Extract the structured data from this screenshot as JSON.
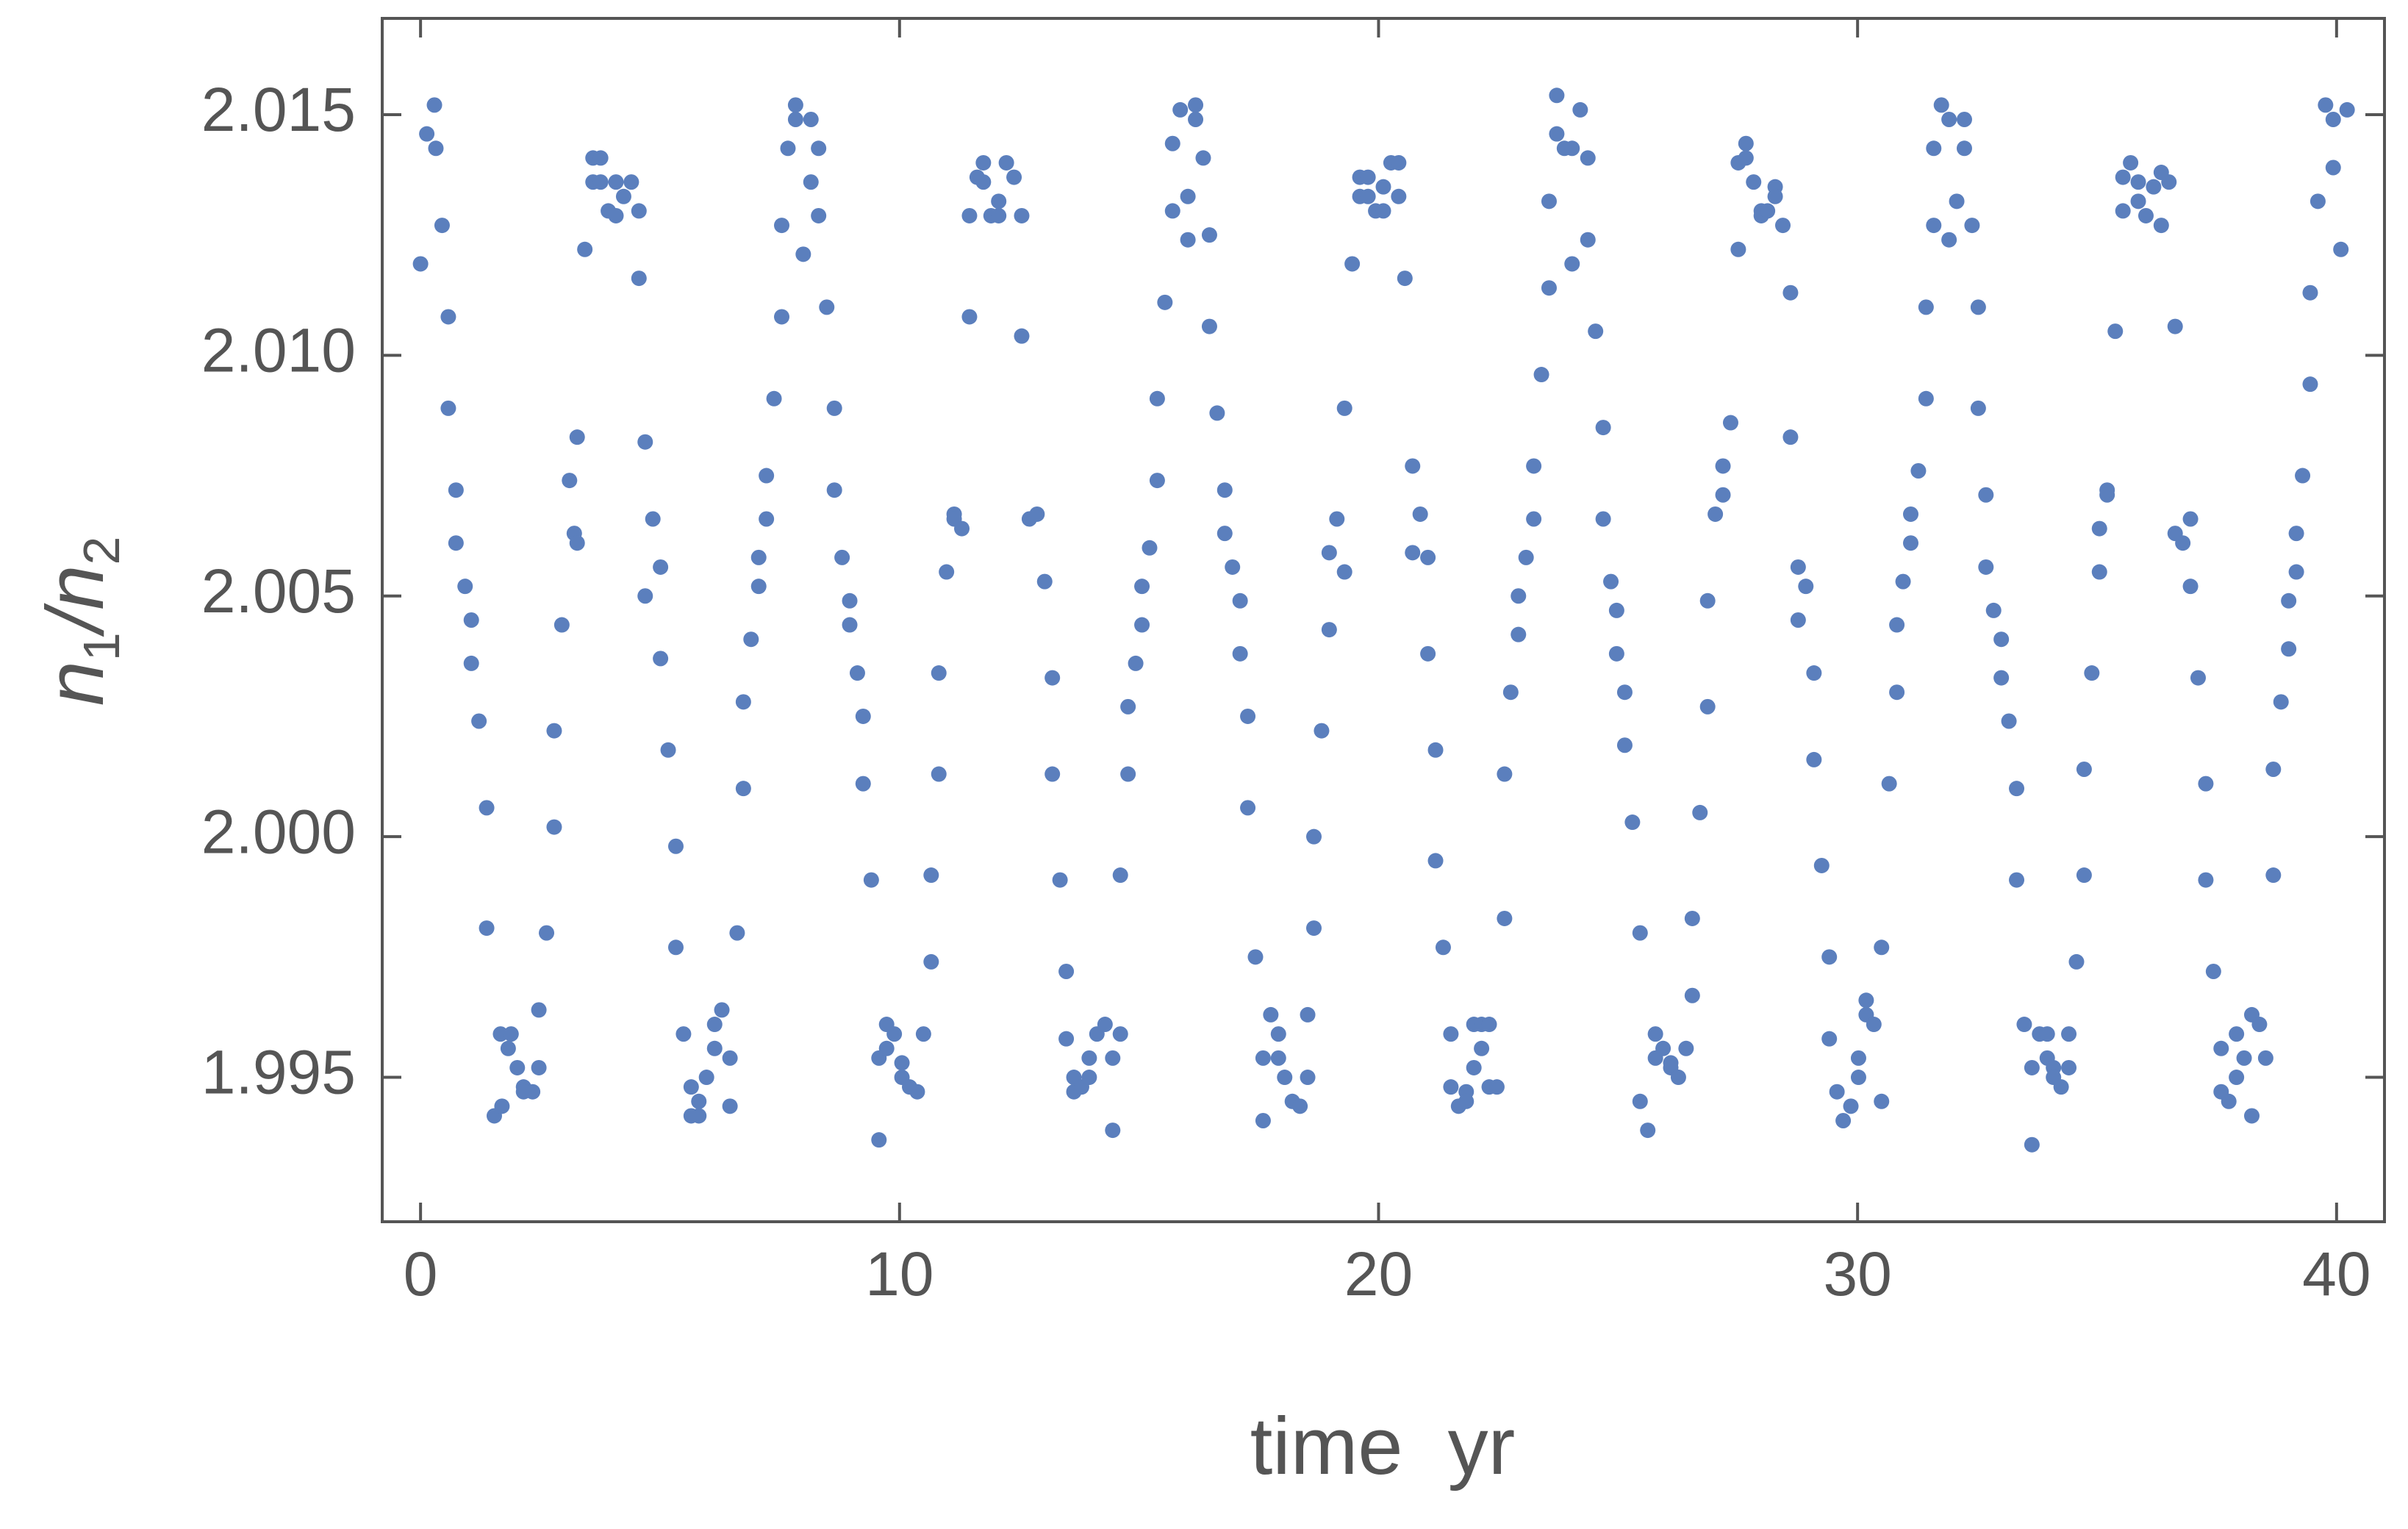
{
  "chart_data": {
    "type": "scatter",
    "x_label": "time  yr",
    "y_label": [
      "n",
      "1",
      "/",
      "n",
      "2"
    ],
    "xlim": [
      -0.8,
      41
    ],
    "ylim": [
      1.992,
      2.017
    ],
    "xticks": [
      0,
      10,
      20,
      30,
      40
    ],
    "yticks": [
      1.995,
      {
        "value": 2,
        "label": "2.000"
      },
      2.005,
      {
        "value": 2.01,
        "label": "2.010"
      },
      2.015
    ],
    "grid": false,
    "x": [
      0,
      0.13,
      0.29,
      0.32,
      0.45,
      0.58,
      0.58,
      0.74,
      0.74,
      0.93,
      1.06,
      1.06,
      1.22,
      1.38,
      1.38,
      1.54,
      1.7,
      1.67,
      1.89,
      1.83,
      2.02,
      2.15,
      2.15,
      2.34,
      2.47,
      2.47,
      2.63,
      2.79,
      2.79,
      2.95,
      3.11,
      3.21,
      3.27,
      3.27,
      3.43,
      3.6,
      3.6,
      3.76,
      3.76,
      3.92,
      4.08,
      4.08,
      4.24,
      4.4,
      4.56,
      4.56,
      4.69,
      4.69,
      4.85,
      5.01,
      5.01,
      5.17,
      5.33,
      5.33,
      5.49,
      5.65,
      5.81,
      5.65,
      5.81,
      5.97,
      6.14,
      6.14,
      6.29,
      6.46,
      6.46,
      6.61,
      6.74,
      6.74,
      6.9,
      7.06,
      7.06,
      7.22,
      7.22,
      7.38,
      7.54,
      7.54,
      7.67,
      7.83,
      7.83,
      7.99,
      8.15,
      8.15,
      8.31,
      8.31,
      8.48,
      8.64,
      8.64,
      8.8,
      8.96,
      8.96,
      9.12,
      9.24,
      9.24,
      9.41,
      9.57,
      9.57,
      9.73,
      9.73,
      9.89,
      10.05,
      10.05,
      10.21,
      10.37,
      10.5,
      10.66,
      10.66,
      10.82,
      10.82,
      10.98,
      11.14,
      11.14,
      11.3,
      11.46,
      11.46,
      11.62,
      11.75,
      11.75,
      11.91,
      12.07,
      12.07,
      12.23,
      12.39,
      12.55,
      12.55,
      12.71,
      12.87,
      13.03,
      13.19,
      13.19,
      13.35,
      13.48,
      13.48,
      13.64,
      13.64,
      13.8,
      13.96,
      13.96,
      14.12,
      14.29,
      14.45,
      14.45,
      14.61,
      14.61,
      14.77,
      14.77,
      14.93,
      15.06,
      15.06,
      15.22,
      15.38,
      15.38,
      15.54,
      15.7,
      15.7,
      15.86,
      16.02,
      16.02,
      16.18,
      16.18,
      16.34,
      16.47,
      16.47,
      16.63,
      16.79,
      16.79,
      16.95,
      17.11,
      17.11,
      17.27,
      17.27,
      17.43,
      17.59,
      17.59,
      17.75,
      17.91,
      17.91,
      18.04,
      18.2,
      18.36,
      18.52,
      18.52,
      18.65,
      18.65,
      18.81,
      18.97,
      18.97,
      19.13,
      19.29,
      19.29,
      19.45,
      19.61,
      19.61,
      19.78,
      19.78,
      19.94,
      20.1,
      20.1,
      20.26,
      20.42,
      20.42,
      20.55,
      20.71,
      20.71,
      20.87,
      21.03,
      21.03,
      21.19,
      21.19,
      21.35,
      21.51,
      21.51,
      21.67,
      21.83,
      21.83,
      21.99,
      21.99,
      22.15,
      22.15,
      22.31,
      22.31,
      22.47,
      22.63,
      22.63,
      22.76,
      22.92,
      22.92,
      23.08,
      23.24,
      23.24,
      23.4,
      23.56,
      23.56,
      23.72,
      23.72,
      23.88,
      24.04,
      24.04,
      24.21,
      24.37,
      24.37,
      24.53,
      24.69,
      24.69,
      24.85,
      24.97,
      24.97,
      25.14,
      25.14,
      25.3,
      25.46,
      25.46,
      25.62,
      25.78,
      25.78,
      25.94,
      26.1,
      26.1,
      26.26,
      26.42,
      26.55,
      26.55,
      26.71,
      26.87,
      26.87,
      27.03,
      27.19,
      27.19,
      27.35,
      27.51,
      27.51,
      27.67,
      27.67,
      27.83,
      27.99,
      27.99,
      28.12,
      28.28,
      28.28,
      28.44,
      28.6,
      28.6,
      28.76,
      28.92,
      28.76,
      29.09,
      29.09,
      29.25,
      29.41,
      29.41,
      29.57,
      29.7,
      29.86,
      30.02,
      30.02,
      30.18,
      30.18,
      30.34,
      30.5,
      30.5,
      30.66,
      30.82,
      30.82,
      30.95,
      31.11,
      31.11,
      31.27,
      31.43,
      31.43,
      31.59,
      31.59,
      31.75,
      31.91,
      31.91,
      32.07,
      32.23,
      32.23,
      32.39,
      32.52,
      32.52,
      32.68,
      32.68,
      32.84,
      33.0,
      33.0,
      33.16,
      33.32,
      33.32,
      33.48,
      33.64,
      33.64,
      33.8,
      33.96,
      33.96,
      34.09,
      34.09,
      34.25,
      34.41,
      34.41,
      34.57,
      34.73,
      34.73,
      34.89,
      35.05,
      35.05,
      35.21,
      35.21,
      35.38,
      35.54,
      35.54,
      35.7,
      35.86,
      35.86,
      36.02,
      36.18,
      36.34,
      36.34,
      36.5,
      36.63,
      36.63,
      36.79,
      36.95,
      36.95,
      37.11,
      37.27,
      37.27,
      37.43,
      37.59,
      37.59,
      37.75,
      37.91,
      37.91,
      38.07,
      38.23,
      38.23,
      38.39,
      38.52,
      38.68,
      38.68,
      38.84,
      39.0,
      39.0,
      39.16,
      39.16,
      39.29,
      39.45,
      39.45,
      39.61,
      39.77,
      39.93,
      39.93,
      40.09,
      40.22
    ],
    "series": [
      {
        "color": "#5b7fbd",
        "values": [
          2.0119,
          2.0146,
          2.0152,
          2.0143,
          2.0127,
          2.0108,
          2.0089,
          2.0072,
          2.0061,
          2.0052,
          2.0045,
          2.0036,
          2.0024,
          2.0006,
          1.9981,
          1.9942,
          1.9944,
          1.9959,
          1.9959,
          1.9956,
          1.9952,
          1.9948,
          1.9947,
          1.9947,
          1.9952,
          1.9964,
          1.998,
          2.0002,
          2.0022,
          2.0044,
          2.0074,
          2.0063,
          2.0061,
          2.0083,
          2.0122,
          2.0136,
          2.0141,
          2.0141,
          2.0136,
          2.013,
          2.0129,
          2.0136,
          2.0133,
          2.0136,
          2.013,
          2.0116,
          2.0082,
          2.005,
          2.0066,
          2.0056,
          2.0037,
          2.0018,
          1.9998,
          1.9977,
          1.9959,
          1.9948,
          1.9945,
          1.9942,
          1.9942,
          1.995,
          1.9961,
          1.9956,
          1.9964,
          1.9954,
          1.9944,
          1.998,
          2.001,
          2.0028,
          2.0041,
          2.0052,
          2.0058,
          2.0066,
          2.0075,
          2.0091,
          2.0108,
          2.0127,
          2.0143,
          2.0152,
          2.0149,
          2.0121,
          2.0136,
          2.0149,
          2.0143,
          2.0129,
          2.011,
          2.0089,
          2.0072,
          2.0058,
          2.0049,
          2.0044,
          2.0034,
          2.0025,
          2.0011,
          1.9991,
          1.9937,
          1.9954,
          1.9961,
          1.9956,
          1.9959,
          1.9953,
          1.995,
          1.9948,
          1.9947,
          1.9959,
          1.9974,
          1.9992,
          2.0013,
          2.0034,
          2.0055,
          2.0067,
          2.0066,
          2.0064,
          2.0108,
          2.0129,
          2.0137,
          2.0136,
          2.014,
          2.0129,
          2.0132,
          2.0129,
          2.014,
          2.0137,
          2.0129,
          2.0104,
          2.0066,
          2.0067,
          2.0053,
          2.0033,
          2.0013,
          1.9991,
          1.9972,
          1.9958,
          1.995,
          1.9947,
          1.9948,
          1.995,
          1.9954,
          1.9959,
          1.9961,
          1.9939,
          1.9954,
          1.9959,
          1.9992,
          2.0027,
          2.0013,
          2.0036,
          2.0044,
          2.0052,
          2.006,
          2.0074,
          2.0091,
          2.0111,
          2.013,
          2.0144,
          2.0151,
          2.0133,
          2.0124,
          2.0152,
          2.0149,
          2.0141,
          2.0125,
          2.0106,
          2.0088,
          2.0072,
          2.0063,
          2.0056,
          2.0049,
          2.0038,
          2.0025,
          2.0006,
          1.9975,
          1.9941,
          1.9954,
          1.9963,
          1.9959,
          1.9954,
          1.995,
          1.9945,
          1.9944,
          1.9963,
          1.995,
          1.9981,
          2.0,
          2.0022,
          2.0043,
          2.0059,
          2.0066,
          2.0055,
          2.0089,
          2.0119,
          2.0133,
          2.0137,
          2.0137,
          2.0133,
          2.013,
          2.0135,
          2.013,
          2.014,
          2.014,
          2.0133,
          2.0116,
          2.0077,
          2.0059,
          2.0067,
          2.0058,
          2.0038,
          2.0018,
          1.9995,
          1.9977,
          1.9959,
          1.9948,
          1.9944,
          1.9947,
          1.9945,
          1.9952,
          1.9961,
          1.9961,
          1.9956,
          1.9961,
          1.9948,
          1.9948,
          1.9983,
          2.0013,
          2.003,
          2.0042,
          2.005,
          2.0058,
          2.0066,
          2.0077,
          2.0096,
          2.0114,
          2.0132,
          2.0146,
          2.0154,
          2.0143,
          2.0143,
          2.0119,
          2.0151,
          2.0141,
          2.0124,
          2.0105,
          2.0085,
          2.0066,
          2.0053,
          2.0047,
          2.0038,
          2.003,
          2.0019,
          2.0003,
          1.998,
          1.9945,
          1.9939,
          1.9959,
          1.9954,
          1.9956,
          1.9953,
          1.9952,
          1.995,
          1.9956,
          1.9983,
          1.9967,
          2.0005,
          2.0027,
          2.0049,
          2.0067,
          2.0071,
          2.0077,
          2.0086,
          2.0122,
          2.014,
          2.0144,
          2.0141,
          2.0136,
          2.013,
          2.0129,
          2.013,
          2.0135,
          2.0133,
          2.0127,
          2.0113,
          2.0083,
          2.0056,
          2.0052,
          2.0045,
          2.0034,
          2.0016,
          1.9994,
          1.9975,
          1.9958,
          1.9947,
          1.9941,
          1.9944,
          1.9954,
          1.995,
          1.9966,
          1.9963,
          1.9961,
          1.9945,
          1.9977,
          2.0011,
          2.003,
          2.0044,
          2.0053,
          2.0061,
          2.0067,
          2.0076,
          2.0091,
          2.011,
          2.0127,
          2.0143,
          2.0152,
          2.0149,
          2.0124,
          2.0132,
          2.0149,
          2.0143,
          2.0127,
          2.011,
          2.0089,
          2.0071,
          2.0056,
          2.0047,
          2.0041,
          2.0033,
          2.0024,
          2.001,
          1.9991,
          1.9961,
          1.9936,
          1.9952,
          1.9959,
          1.9959,
          1.9954,
          1.9952,
          1.995,
          1.9948,
          1.9959,
          1.9952,
          1.9974,
          1.9992,
          2.0014,
          2.0034,
          2.0055,
          2.0064,
          2.0071,
          2.0072,
          2.0105,
          2.013,
          2.0137,
          2.014,
          2.0136,
          2.0132,
          2.0129,
          2.0135,
          2.0138,
          2.0127,
          2.0136,
          2.0106,
          2.0063,
          2.0061,
          2.0066,
          2.0052,
          2.0033,
          2.0011,
          1.9991,
          1.9972,
          1.9956,
          1.9947,
          1.9945,
          1.995,
          1.9959,
          1.9954,
          1.9963,
          1.9942,
          1.9961,
          1.9954,
          1.9992,
          2.0014,
          2.0028,
          2.0039,
          2.0049,
          2.0055,
          2.0063,
          2.0075,
          2.0094,
          2.0113,
          2.0132,
          2.0152,
          2.0139,
          2.0149,
          2.0122,
          2.0151
        ]
      }
    ]
  }
}
